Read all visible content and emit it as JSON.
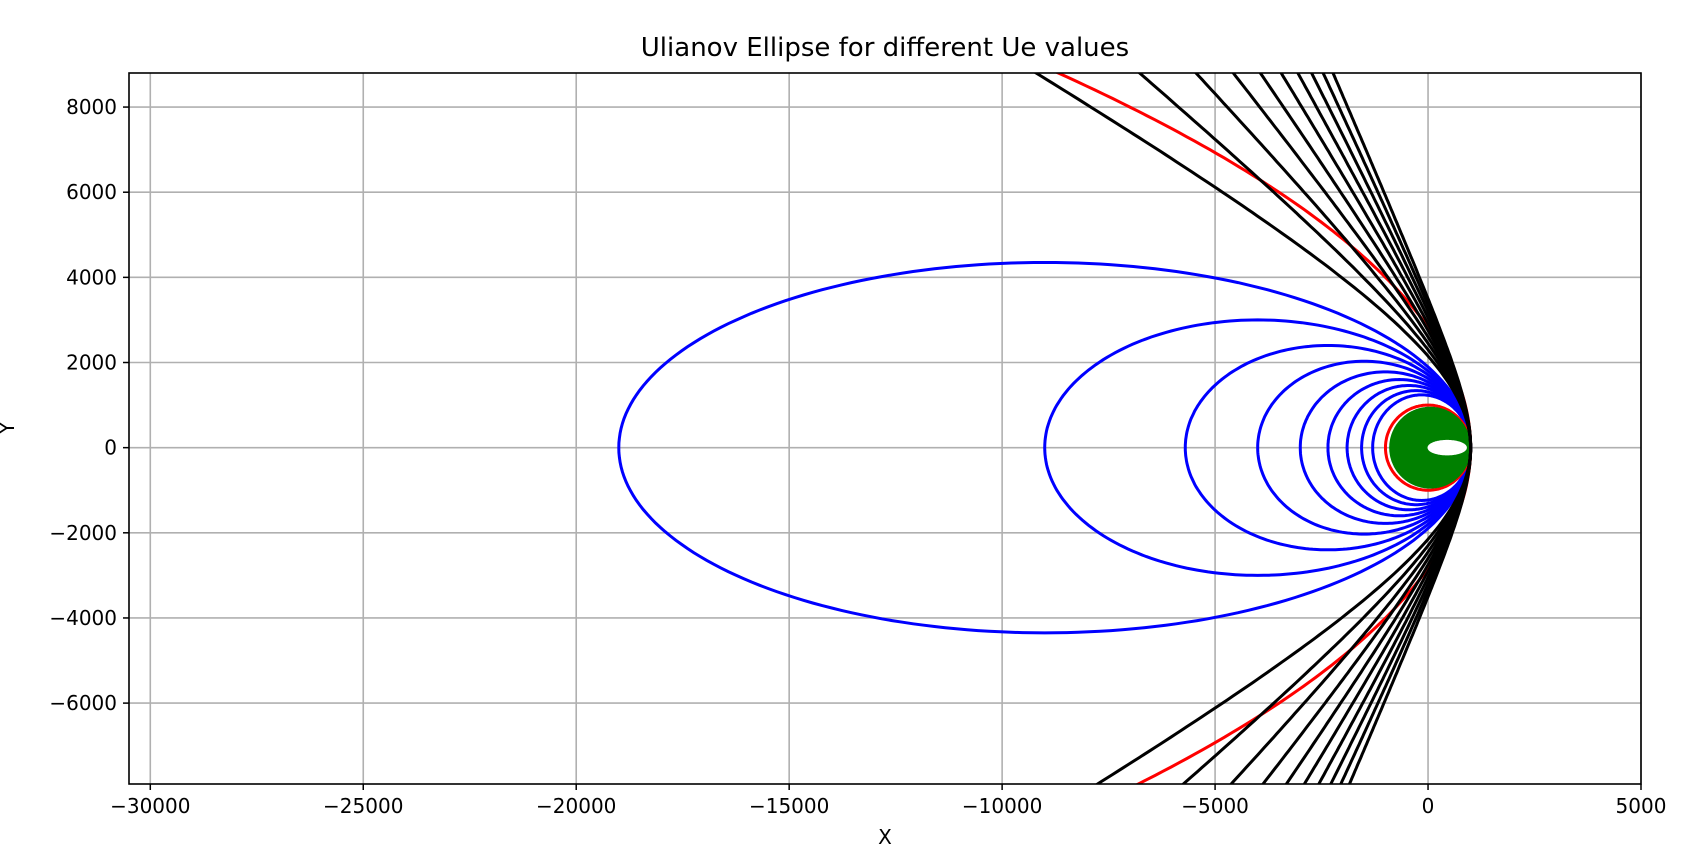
{
  "chart_data": {
    "type": "line",
    "title": "Ulianov Ellipse for different Ue values",
    "xlabel": "X",
    "ylabel": "Y",
    "xlim": [
      -30500,
      5000
    ],
    "ylim": [
      -7900,
      8800
    ],
    "xticks": [
      -30000,
      -25000,
      -20000,
      -15000,
      -10000,
      -5000,
      0,
      5000
    ],
    "yticks": [
      -6000,
      -4000,
      -2000,
      0,
      2000,
      4000,
      6000,
      8000
    ],
    "grid": true,
    "legend": "none",
    "colors": {
      "ellipse": "#0000ff",
      "boundary": "#ff0000",
      "hyperbola": "#000000",
      "inner": "#008000",
      "highlight": "#ffffff"
    },
    "series": [
      {
        "kind": "ellipse",
        "color": "#0000ff",
        "xmin": -19000,
        "xmax": 1000,
        "ymax": 4350
      },
      {
        "kind": "ellipse",
        "color": "#0000ff",
        "xmin": -9000,
        "xmax": 1000,
        "ymax": 3000
      },
      {
        "kind": "ellipse",
        "color": "#0000ff",
        "xmin": -5700,
        "xmax": 1000,
        "ymax": 2400
      },
      {
        "kind": "ellipse",
        "color": "#0000ff",
        "xmin": -4000,
        "xmax": 1000,
        "ymax": 2030
      },
      {
        "kind": "ellipse",
        "color": "#0000ff",
        "xmin": -3000,
        "xmax": 1000,
        "ymax": 1780
      },
      {
        "kind": "ellipse",
        "color": "#0000ff",
        "xmin": -2350,
        "xmax": 1000,
        "ymax": 1600
      },
      {
        "kind": "ellipse",
        "color": "#0000ff",
        "xmin": -1900,
        "xmax": 1000,
        "ymax": 1460
      },
      {
        "kind": "ellipse",
        "color": "#0000ff",
        "xmin": -1560,
        "xmax": 1000,
        "ymax": 1340
      },
      {
        "kind": "ellipse",
        "color": "#0000ff",
        "xmin": -1300,
        "xmax": 1000,
        "ymax": 1240
      },
      {
        "kind": "ellipse",
        "color": "#ff0000",
        "xmin": -1000,
        "xmax": 1000,
        "ymax": 1000
      },
      {
        "kind": "ellipse",
        "color": "#008000",
        "xmin": -900,
        "xmax": 1000,
        "ymax": 950,
        "fill": true
      },
      {
        "kind": "ellipse",
        "color": "#ffffff",
        "xmin": 0,
        "xmax": 900,
        "ymax": 170,
        "fill": true
      },
      {
        "kind": "parabola",
        "color": "#ff0000",
        "p": 2000
      },
      {
        "kind": "hyperbola",
        "color": "#000000",
        "e": 1.15
      },
      {
        "kind": "hyperbola",
        "color": "#000000",
        "e": 1.3
      },
      {
        "kind": "hyperbola",
        "color": "#000000",
        "e": 1.45
      },
      {
        "kind": "hyperbola",
        "color": "#000000",
        "e": 1.6
      },
      {
        "kind": "hyperbola",
        "color": "#000000",
        "e": 1.75
      },
      {
        "kind": "hyperbola",
        "color": "#000000",
        "e": 1.9
      },
      {
        "kind": "hyperbola",
        "color": "#000000",
        "e": 2.05
      },
      {
        "kind": "hyperbola",
        "color": "#000000",
        "e": 2.2
      },
      {
        "kind": "hyperbola",
        "color": "#000000",
        "e": 2.35
      },
      {
        "kind": "hyperbola",
        "color": "#000000",
        "e": 2.5
      }
    ]
  }
}
